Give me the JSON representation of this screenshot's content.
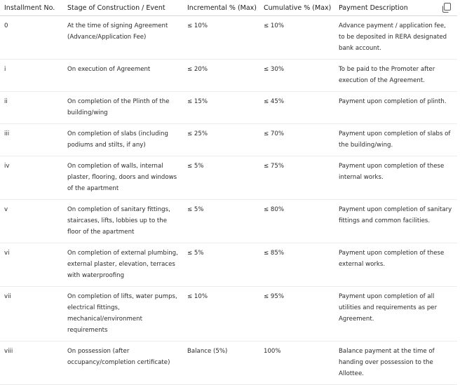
{
  "headers": [
    "Installment No.",
    "Stage of Construction / Event",
    "Incremental % (Max)",
    "Cumulative % (Max)",
    "Payment Description"
  ],
  "copy_icon": "copy-icon",
  "rows": [
    [
      "0",
      "At the time of signing Agreement (Advance/Application Fee)",
      "≤ 10%",
      "≤ 10%",
      "Advance payment / application fee, to be deposited in RERA designated bank account."
    ],
    [
      "i",
      "On execution of Agreement",
      "≤ 20%",
      "≤ 30%",
      "To be paid to the Promoter after execution of the Agreement."
    ],
    [
      "ii",
      "On completion of the Plinth of the building/wing",
      "≤ 15%",
      "≤ 45%",
      "Payment upon completion of plinth."
    ],
    [
      "iii",
      "On completion of slabs (including podiums and stilts, if any)",
      "≤ 25%",
      "≤ 70%",
      "Payment upon completion of slabs of the building/wing."
    ],
    [
      "iv",
      "On completion of walls, internal plaster, flooring, doors and windows of the apartment",
      "≤ 5%",
      "≤ 75%",
      "Payment upon completion of these internal works."
    ],
    [
      "v",
      "On completion of sanitary fittings, staircases, lifts, lobbies up to the floor of the apartment",
      "≤ 5%",
      "≤ 80%",
      "Payment upon completion of sanitary fittings and common facilities."
    ],
    [
      "vi",
      "On completion of external plumbing, external plaster, elevation, terraces with waterproofing",
      "≤ 5%",
      "≤ 85%",
      "Payment upon completion of these external works."
    ],
    [
      "vii",
      "On completion of lifts, water pumps, electrical fittings, mechanical/environment requirements",
      "≤ 10%",
      "≤ 95%",
      "Payment upon completion of all utilities and requirements as per Agreement."
    ],
    [
      "viii",
      "On possession (after occupancy/completion certificate)",
      "Balance (5%)",
      "100%",
      "Balance payment at the time of handing over possession to the Allottee."
    ]
  ]
}
